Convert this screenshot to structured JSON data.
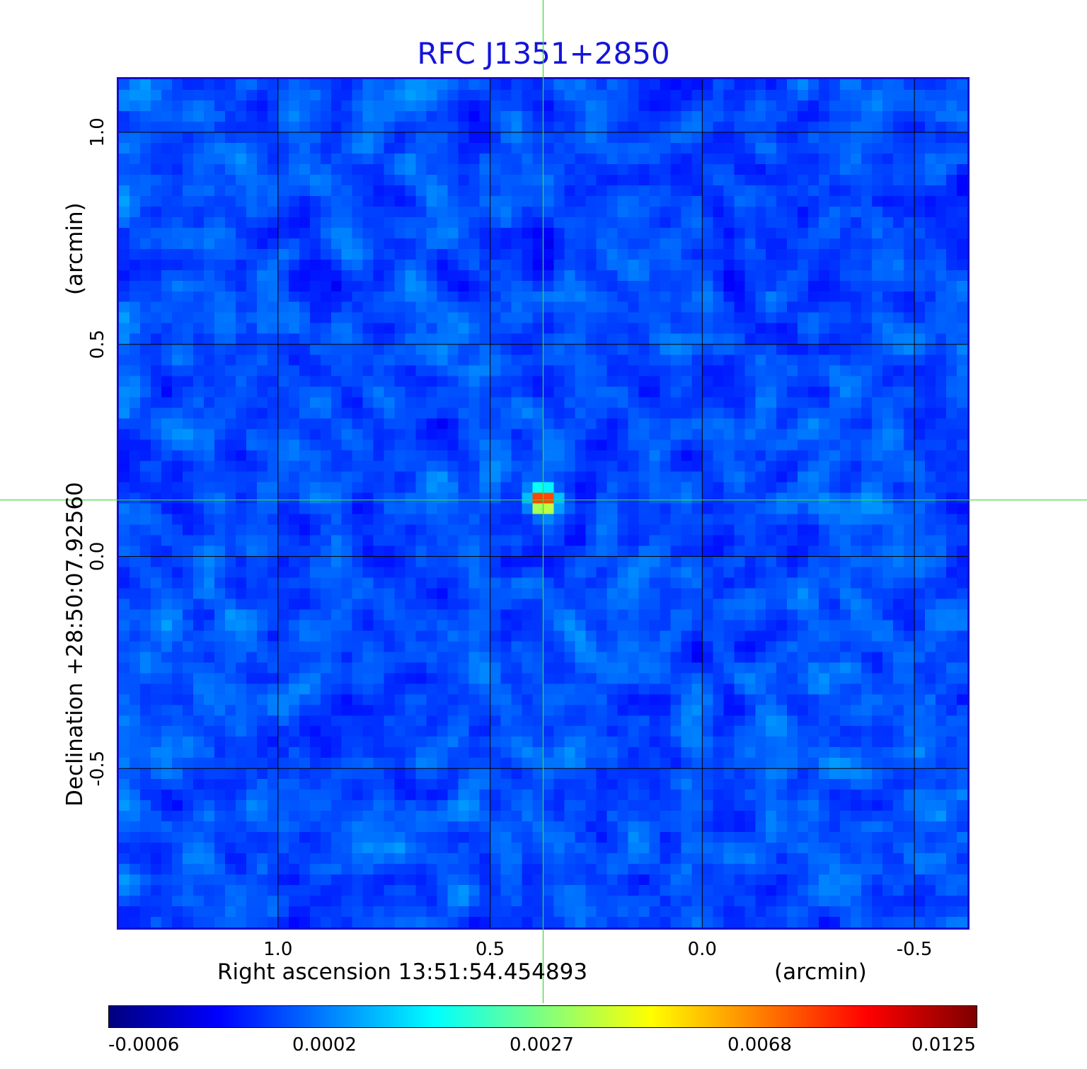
{
  "chart_data": {
    "type": "heatmap",
    "title": "RFC J1351+2850",
    "xlabel": "Right ascension  13:51:54.454893",
    "xlabel_unit": "(arcmin)",
    "ylabel": "Declination  +28:50:07.92560",
    "ylabel_unit": "(arcmin)",
    "xlim": [
      1.375,
      -0.625
    ],
    "ylim": [
      -0.875,
      1.125
    ],
    "x_ticks": [
      {
        "value": 1.0,
        "label": "1.0"
      },
      {
        "value": 0.5,
        "label": "0.5"
      },
      {
        "value": 0.0,
        "label": "0.0"
      },
      {
        "value": -0.5,
        "label": "-0.5"
      }
    ],
    "y_ticks": [
      {
        "value": 1.0,
        "label": "1.0"
      },
      {
        "value": 0.5,
        "label": "0.5"
      },
      {
        "value": 0.0,
        "label": "0.0"
      },
      {
        "value": -0.5,
        "label": "-0.5"
      }
    ],
    "grid": true,
    "crosshair": {
      "x": 0.375,
      "y": 0.133
    },
    "source_peak": {
      "x": 0.375,
      "y": 0.133,
      "value": 0.0125
    },
    "colorbar": {
      "min": -0.0006,
      "max": 0.0125,
      "tick_labels": [
        "-0.0006",
        "0.0002",
        "0.0027",
        "0.0068",
        "0.0125"
      ],
      "colormap": "jet"
    }
  },
  "colors": {
    "title": "#1414d8",
    "frame": "#1010d0",
    "crosshair": "#33dd33",
    "grid": "#000000"
  }
}
